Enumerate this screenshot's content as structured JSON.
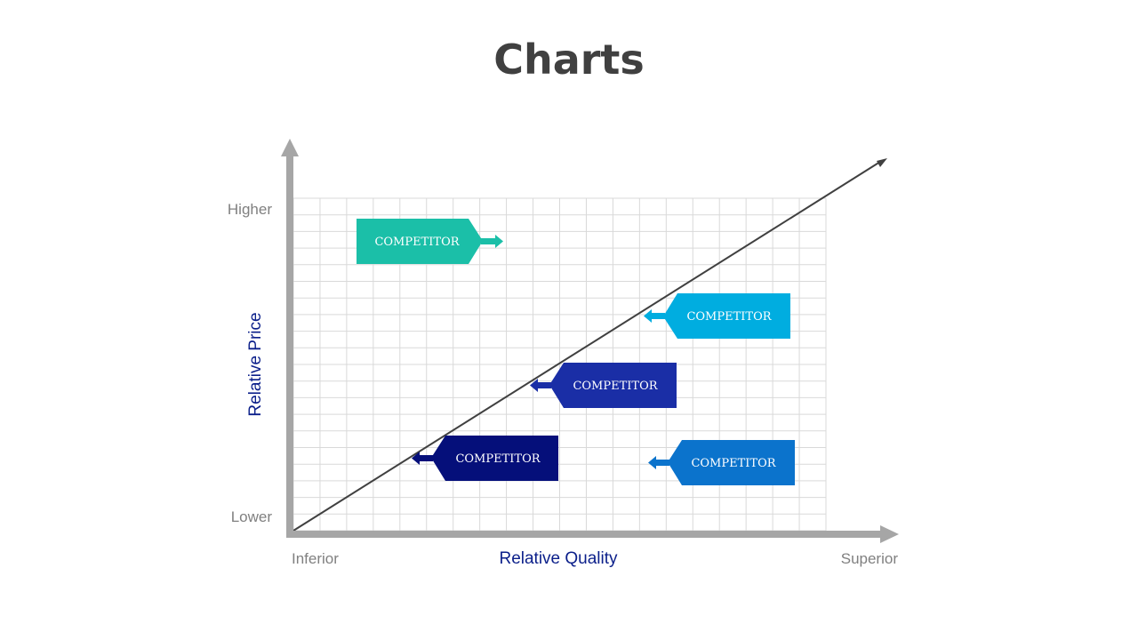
{
  "title": "Charts",
  "axes": {
    "y_label": "Relative Price",
    "x_label": "Relative Quality",
    "y_high": "Higher",
    "y_low": "Lower",
    "x_low": "Inferior",
    "x_high": "Superior"
  },
  "competitors": [
    {
      "label": "COMPETITOR",
      "color": "#1bbfa8",
      "arrow": "right"
    },
    {
      "label": "COMPETITOR",
      "color": "#00ade0",
      "arrow": "left"
    },
    {
      "label": "COMPETITOR",
      "color": "#1a2ea6",
      "arrow": "left"
    },
    {
      "label": "COMPETITOR",
      "color": "#050f7a",
      "arrow": "left"
    },
    {
      "label": "COMPETITOR",
      "color": "#0b73cc",
      "arrow": "left"
    }
  ],
  "colors": {
    "axis": "#a6a6a6",
    "grid": "#d9d9d9",
    "axis_title": "#0b1f8a",
    "tick_text": "#808080",
    "trend_line": "#404040"
  }
}
